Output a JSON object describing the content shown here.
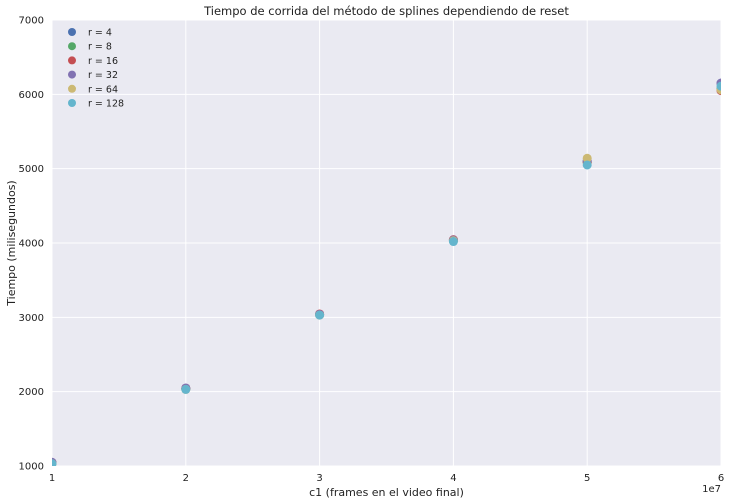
{
  "chart_data": {
    "type": "scatter",
    "title": "Tiempo de corrida del método de splines dependiendo de reset",
    "xlabel": "c1 (frames en el video final)",
    "ylabel": "Tiempo (milisegundos)",
    "x_offset_label": "1e7",
    "x": [
      10000000,
      20000000,
      30000000,
      40000000,
      50000000,
      60000000
    ],
    "xlim": [
      10000000,
      60000000
    ],
    "ylim": [
      1000,
      7000
    ],
    "x_tick_labels": [
      "1",
      "2",
      "3",
      "4",
      "5",
      "6"
    ],
    "x_tick_values": [
      10000000,
      20000000,
      30000000,
      40000000,
      50000000,
      60000000
    ],
    "y_tick_labels": [
      "1000",
      "2000",
      "3000",
      "4000",
      "5000",
      "6000",
      "7000"
    ],
    "y_tick_values": [
      1000,
      2000,
      3000,
      4000,
      5000,
      6000,
      7000
    ],
    "grid": true,
    "legend_position": "top-left",
    "background_color": "#eaeaf2",
    "grid_color": "#ffffff",
    "series": [
      {
        "name": "r = 4",
        "color": "#4c72b0",
        "values": [
          1040,
          2040,
          3040,
          4040,
          5100,
          6150
        ]
      },
      {
        "name": "r = 8",
        "color": "#55a868",
        "values": [
          1035,
          2035,
          3035,
          4030,
          5080,
          6080
        ]
      },
      {
        "name": "r = 16",
        "color": "#c44e52",
        "values": [
          1045,
          2045,
          3045,
          4045,
          5090,
          6050
        ]
      },
      {
        "name": "r = 32",
        "color": "#8172b2",
        "values": [
          1050,
          2050,
          3040,
          4040,
          5110,
          6150
        ]
      },
      {
        "name": "r = 64",
        "color": "#ccb974",
        "values": [
          1030,
          2030,
          3030,
          4030,
          5140,
          6060
        ]
      },
      {
        "name": "r = 128",
        "color": "#64b5cd",
        "values": [
          1030,
          2030,
          3030,
          4020,
          5050,
          6110
        ]
      }
    ]
  }
}
